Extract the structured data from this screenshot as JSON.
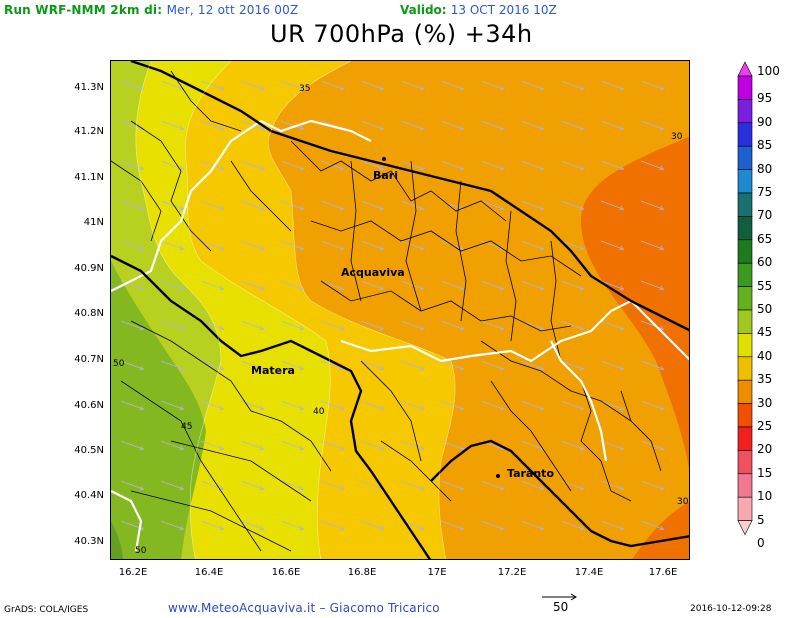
{
  "header": {
    "run_label": "Run WRF-NMM 2km di:",
    "run_date": "Mer, 12 ott 2016 00Z",
    "valid_label": "Valido:",
    "valid_date": "13 OCT 2016 10Z"
  },
  "title": "UR 700hPa (%) +34h",
  "map": {
    "y_ticks": [
      "41.3N",
      "41.2N",
      "41.1N",
      "41N",
      "40.9N",
      "40.8N",
      "40.7N",
      "40.6N",
      "40.5N",
      "40.4N",
      "40.3N"
    ],
    "x_ticks": [
      "16.2E",
      "16.4E",
      "16.6E",
      "16.8E",
      "17E",
      "17.2E",
      "17.4E",
      "17.6E"
    ],
    "cities": [
      "Bari",
      "Acquaviva",
      "Matera",
      "Taranto"
    ],
    "contour_labels": [
      "35",
      "30",
      "50",
      "45",
      "40",
      "50",
      "30"
    ]
  },
  "colorbar": {
    "labels": [
      "100",
      "95",
      "90",
      "85",
      "80",
      "75",
      "70",
      "65",
      "60",
      "55",
      "50",
      "45",
      "40",
      "35",
      "30",
      "25",
      "20",
      "15",
      "10",
      "5",
      "0"
    ],
    "colors": [
      "#f03cf0",
      "#c000e0",
      "#7a1ee0",
      "#2a30e0",
      "#1e60d0",
      "#1e8ad0",
      "#187070",
      "#106040",
      "#1e7a1e",
      "#3a9a20",
      "#64b01e",
      "#a0c820",
      "#e0e000",
      "#f0c000",
      "#f08c00",
      "#f05000",
      "#f02020",
      "#f05060",
      "#f07890",
      "#f8a8b0",
      "#f8d0d0"
    ]
  },
  "footer": {
    "left": "GrADS: COLA/IGES",
    "center": "www.MeteoAcquaviva.it  –  Giacomo Tricarico",
    "vector_ref": "50",
    "right": "2016-10-12-09:28"
  }
}
